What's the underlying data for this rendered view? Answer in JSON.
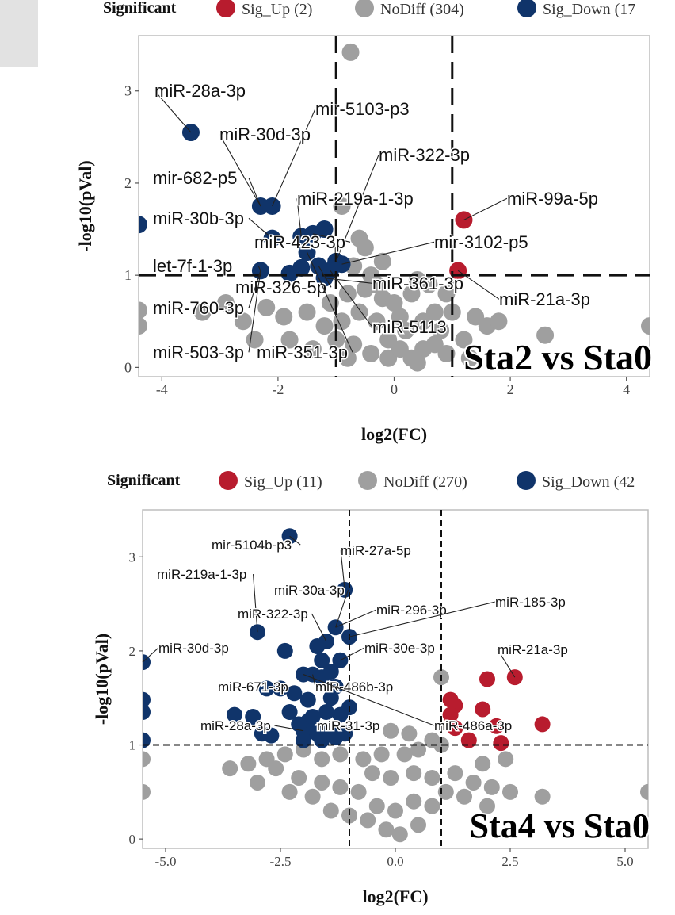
{
  "colors": {
    "sig_up": "#b81c2e",
    "no_diff": "#9f9f9f",
    "sig_down": "#10346a"
  },
  "chart_data": [
    {
      "type": "scatter",
      "title": "Sta2 vs Sta0",
      "xlabel": "log2(FC)",
      "ylabel": "-log10(pVal)",
      "xlim": [
        -4.4,
        4.4
      ],
      "ylim": [
        -0.1,
        3.6
      ],
      "xticks": [
        -4,
        -2,
        0,
        2,
        4
      ],
      "yticks": [
        0,
        1,
        2,
        3
      ],
      "threshold_x": [
        -1,
        1
      ],
      "threshold_y": 1,
      "legend": {
        "title": "Significant",
        "placement": "top",
        "entries": [
          {
            "key": "sig_up",
            "label": "Sig_Up (2)"
          },
          {
            "key": "no_diff",
            "label": "NoDiff (304)"
          },
          {
            "key": "sig_down",
            "label": "Sig_Down (17"
          }
        ]
      },
      "points": {
        "sig_up": [
          [
            1.2,
            1.6
          ],
          [
            1.1,
            1.05
          ]
        ],
        "sig_down": [
          [
            -3.5,
            2.55
          ],
          [
            -4.4,
            1.55
          ],
          [
            -2.3,
            1.75
          ],
          [
            -2.1,
            1.75
          ],
          [
            -2.1,
            1.4
          ],
          [
            -1.6,
            1.42
          ],
          [
            -1.4,
            1.45
          ],
          [
            -1.2,
            1.5
          ],
          [
            -1.5,
            1.25
          ],
          [
            -1.3,
            1.1
          ],
          [
            -1.1,
            1.05
          ],
          [
            -1.0,
            1.15
          ],
          [
            -0.9,
            1.12
          ],
          [
            -1.2,
            0.97
          ],
          [
            -1.6,
            1.08
          ],
          [
            -2.3,
            1.05
          ],
          [
            -1.8,
            1.02
          ]
        ],
        "no_diff": [
          [
            -0.75,
            3.42
          ],
          [
            -0.9,
            1.75
          ],
          [
            -0.6,
            1.4
          ],
          [
            -0.5,
            1.3
          ],
          [
            -0.7,
            1.1
          ],
          [
            -0.4,
            1.0
          ],
          [
            -0.3,
            0.9
          ],
          [
            -0.5,
            0.85
          ],
          [
            -0.8,
            0.8
          ],
          [
            -0.2,
            0.75
          ],
          [
            0.0,
            0.7
          ],
          [
            0.3,
            0.8
          ],
          [
            0.4,
            0.95
          ],
          [
            0.7,
            0.6
          ],
          [
            0.9,
            0.8
          ],
          [
            0.8,
            0.4
          ],
          [
            0.5,
            0.5
          ],
          [
            0.2,
            0.4
          ],
          [
            -0.1,
            0.3
          ],
          [
            -0.3,
            0.5
          ],
          [
            -0.6,
            0.6
          ],
          [
            -0.9,
            0.5
          ],
          [
            -1.2,
            0.45
          ],
          [
            -1.5,
            0.6
          ],
          [
            -1.9,
            0.55
          ],
          [
            -2.2,
            0.65
          ],
          [
            -2.6,
            0.5
          ],
          [
            -2.9,
            0.7
          ],
          [
            -3.3,
            0.6
          ],
          [
            -1.0,
            0.3
          ],
          [
            -0.7,
            0.25
          ],
          [
            -0.4,
            0.15
          ],
          [
            -0.1,
            0.1
          ],
          [
            0.1,
            0.2
          ],
          [
            0.3,
            0.1
          ],
          [
            0.5,
            0.2
          ],
          [
            0.7,
            0.25
          ],
          [
            0.9,
            0.15
          ],
          [
            1.2,
            0.3
          ],
          [
            1.4,
            0.55
          ],
          [
            1.6,
            0.45
          ],
          [
            1.8,
            0.5
          ],
          [
            2.6,
            0.35
          ],
          [
            4.4,
            0.45
          ],
          [
            -4.4,
            0.62
          ],
          [
            -4.4,
            0.45
          ],
          [
            1.0,
            0.6
          ],
          [
            0.6,
            0.9
          ],
          [
            -1.4,
            0.2
          ],
          [
            -1.8,
            0.3
          ],
          [
            -2.4,
            0.3
          ],
          [
            -0.8,
            0.1
          ],
          [
            0.4,
            0.05
          ],
          [
            1.3,
            0.1
          ],
          [
            -0.2,
            1.15
          ],
          [
            0.1,
            0.55
          ],
          [
            -1.1,
            0.7
          ]
        ]
      },
      "labels": [
        {
          "text": "miR-28a-3p",
          "point": [
            -3.5,
            2.55
          ]
        },
        {
          "text": "mir-5103-p3",
          "point": [
            -2.1,
            1.75
          ]
        },
        {
          "text": "miR-30d-3p",
          "point": [
            -2.3,
            1.75
          ]
        },
        {
          "text": "miR-322-3p",
          "point": [
            -1.0,
            1.15
          ]
        },
        {
          "text": "mir-682-p5",
          "point": [
            -2.3,
            1.75
          ]
        },
        {
          "text": "miR-219a-1-3p",
          "point": [
            -1.6,
            1.42
          ]
        },
        {
          "text": "miR-99a-5p",
          "point": [
            1.2,
            1.6
          ]
        },
        {
          "text": "miR-30b-3p",
          "point": [
            -2.1,
            1.4
          ]
        },
        {
          "text": "miR-423-3p",
          "point": [
            -1.4,
            1.45
          ]
        },
        {
          "text": "mir-3102-p5",
          "point": [
            -0.9,
            1.12
          ]
        },
        {
          "text": "let-7f-1-3p",
          "point": [
            -2.3,
            1.05
          ]
        },
        {
          "text": "miR-326-5p",
          "point": [
            -1.3,
            1.1
          ]
        },
        {
          "text": "miR-361-3p",
          "point": [
            -1.2,
            0.97
          ]
        },
        {
          "text": "miR-21a-3p",
          "point": [
            1.1,
            1.05
          ]
        },
        {
          "text": "miR-760-3p",
          "point": [
            -2.3,
            1.05
          ]
        },
        {
          "text": "miR-5113",
          "point": [
            -1.1,
            1.05
          ]
        },
        {
          "text": "miR-503-3p",
          "point": [
            -2.3,
            1.05
          ]
        },
        {
          "text": "miR-351-3p",
          "point": [
            -1.5,
            1.25
          ]
        }
      ]
    },
    {
      "type": "scatter",
      "title": "Sta4 vs Sta0",
      "xlabel": "log2(FC)",
      "ylabel": "-log10(pVal)",
      "xlim": [
        -5.5,
        5.5
      ],
      "ylim": [
        -0.1,
        3.5
      ],
      "xticks": [
        -5.0,
        -2.5,
        0.0,
        2.5,
        5.0
      ],
      "xtick_labels": [
        "-5.0",
        "-2.5",
        "0.0",
        "2.5",
        "5.0"
      ],
      "yticks": [
        0,
        1,
        2,
        3
      ],
      "threshold_x": [
        -1,
        1
      ],
      "threshold_y": 1,
      "legend": {
        "title": "Significant",
        "placement": "top",
        "entries": [
          {
            "key": "sig_up",
            "label": "Sig_Up (11)"
          },
          {
            "key": "no_diff",
            "label": "NoDiff (270)"
          },
          {
            "key": "sig_down",
            "label": "Sig_Down (42"
          }
        ]
      },
      "points": {
        "sig_up": [
          [
            2.6,
            1.72
          ],
          [
            2.0,
            1.7
          ],
          [
            1.2,
            1.48
          ],
          [
            1.3,
            1.42
          ],
          [
            1.9,
            1.38
          ],
          [
            1.2,
            1.32
          ],
          [
            3.2,
            1.22
          ],
          [
            2.2,
            1.2
          ],
          [
            1.3,
            1.18
          ],
          [
            1.6,
            1.05
          ],
          [
            2.3,
            1.02
          ]
        ],
        "sig_down": [
          [
            -2.3,
            3.22
          ],
          [
            -1.1,
            2.65
          ],
          [
            -1.3,
            2.25
          ],
          [
            -3.0,
            2.2
          ],
          [
            -1.0,
            2.15
          ],
          [
            -1.5,
            2.1
          ],
          [
            -1.7,
            2.05
          ],
          [
            -2.4,
            2.0
          ],
          [
            -1.2,
            1.9
          ],
          [
            -5.5,
            1.88
          ],
          [
            -2.0,
            1.75
          ],
          [
            -1.8,
            1.75
          ],
          [
            -1.6,
            1.72
          ],
          [
            -2.8,
            1.6
          ],
          [
            -2.5,
            1.6
          ],
          [
            -2.2,
            1.55
          ],
          [
            -1.4,
            1.5
          ],
          [
            -5.5,
            1.48
          ],
          [
            -5.5,
            1.35
          ],
          [
            -3.5,
            1.32
          ],
          [
            -3.1,
            1.3
          ],
          [
            -1.2,
            1.32
          ],
          [
            -1.9,
            1.25
          ],
          [
            -2.0,
            1.15
          ],
          [
            -1.7,
            1.12
          ],
          [
            -1.4,
            1.15
          ],
          [
            -1.1,
            1.12
          ],
          [
            -5.5,
            1.05
          ],
          [
            -2.9,
            1.12
          ],
          [
            -2.7,
            1.1
          ],
          [
            -2.0,
            1.05
          ],
          [
            -1.6,
            1.05
          ],
          [
            -1.3,
            1.08
          ],
          [
            -1.8,
            1.3
          ],
          [
            -1.5,
            1.35
          ],
          [
            -2.3,
            1.35
          ],
          [
            -1.0,
            1.4
          ],
          [
            -1.3,
            1.62
          ],
          [
            -1.9,
            1.48
          ],
          [
            -2.1,
            1.22
          ],
          [
            -1.6,
            1.9
          ],
          [
            -1.4,
            1.78
          ]
        ],
        "no_diff": [
          [
            1.0,
            1.72
          ],
          [
            -0.1,
            1.15
          ],
          [
            0.3,
            1.12
          ],
          [
            0.8,
            1.05
          ],
          [
            1.0,
            1.0
          ],
          [
            0.5,
            0.95
          ],
          [
            0.2,
            0.9
          ],
          [
            -0.3,
            0.9
          ],
          [
            -0.7,
            0.85
          ],
          [
            -1.2,
            0.9
          ],
          [
            -1.6,
            0.85
          ],
          [
            -2.0,
            0.95
          ],
          [
            -2.4,
            0.9
          ],
          [
            -2.8,
            0.85
          ],
          [
            -3.2,
            0.8
          ],
          [
            -3.6,
            0.75
          ],
          [
            -5.5,
            0.85
          ],
          [
            -5.5,
            0.5
          ],
          [
            -0.5,
            0.7
          ],
          [
            -0.1,
            0.65
          ],
          [
            0.4,
            0.7
          ],
          [
            0.8,
            0.65
          ],
          [
            1.3,
            0.7
          ],
          [
            1.7,
            0.6
          ],
          [
            2.1,
            0.55
          ],
          [
            2.5,
            0.5
          ],
          [
            3.2,
            0.45
          ],
          [
            5.5,
            0.5
          ],
          [
            -0.8,
            0.5
          ],
          [
            -1.2,
            0.55
          ],
          [
            -1.6,
            0.6
          ],
          [
            -2.1,
            0.65
          ],
          [
            -2.6,
            0.75
          ],
          [
            -3.0,
            0.6
          ],
          [
            -0.4,
            0.35
          ],
          [
            0.0,
            0.3
          ],
          [
            0.4,
            0.4
          ],
          [
            0.8,
            0.35
          ],
          [
            1.1,
            0.5
          ],
          [
            1.5,
            0.45
          ],
          [
            -0.6,
            0.2
          ],
          [
            -0.2,
            0.1
          ],
          [
            0.1,
            0.05
          ],
          [
            0.5,
            0.15
          ],
          [
            -1.4,
            0.3
          ],
          [
            -1.0,
            0.25
          ],
          [
            -1.8,
            0.45
          ],
          [
            -2.3,
            0.5
          ],
          [
            1.9,
            0.8
          ],
          [
            2.4,
            0.85
          ],
          [
            2.0,
            0.35
          ]
        ]
      },
      "labels": [
        {
          "text": "mir-5104b-p3",
          "point": [
            -2.3,
            3.22
          ]
        },
        {
          "text": "miR-27a-5p",
          "point": [
            -1.1,
            2.65
          ]
        },
        {
          "text": "miR-219a-1-3p",
          "point": [
            -3.0,
            2.2
          ]
        },
        {
          "text": "miR-30a-3p",
          "point": [
            -1.3,
            2.25
          ]
        },
        {
          "text": "miR-322-3p",
          "point": [
            -1.5,
            2.1
          ]
        },
        {
          "text": "miR-296-3p",
          "point": [
            -1.3,
            2.25
          ]
        },
        {
          "text": "miR-185-3p",
          "point": [
            -1.0,
            2.15
          ]
        },
        {
          "text": "miR-30d-3p",
          "point": [
            -5.5,
            1.88
          ]
        },
        {
          "text": "miR-30e-3p",
          "point": [
            -1.2,
            1.9
          ]
        },
        {
          "text": "miR-21a-3p",
          "point": [
            2.6,
            1.72
          ]
        },
        {
          "text": "miR-671-3p",
          "point": [
            -2.5,
            1.6
          ]
        },
        {
          "text": "miR-486b-3p",
          "point": [
            -1.8,
            1.75
          ]
        },
        {
          "text": "miR-28a-3p",
          "point": [
            -2.0,
            1.15
          ]
        },
        {
          "text": "miR-31-3p",
          "point": [
            -1.4,
            1.15
          ]
        },
        {
          "text": "miR-486a-3p",
          "point": [
            -2.0,
            1.75
          ]
        }
      ]
    }
  ]
}
